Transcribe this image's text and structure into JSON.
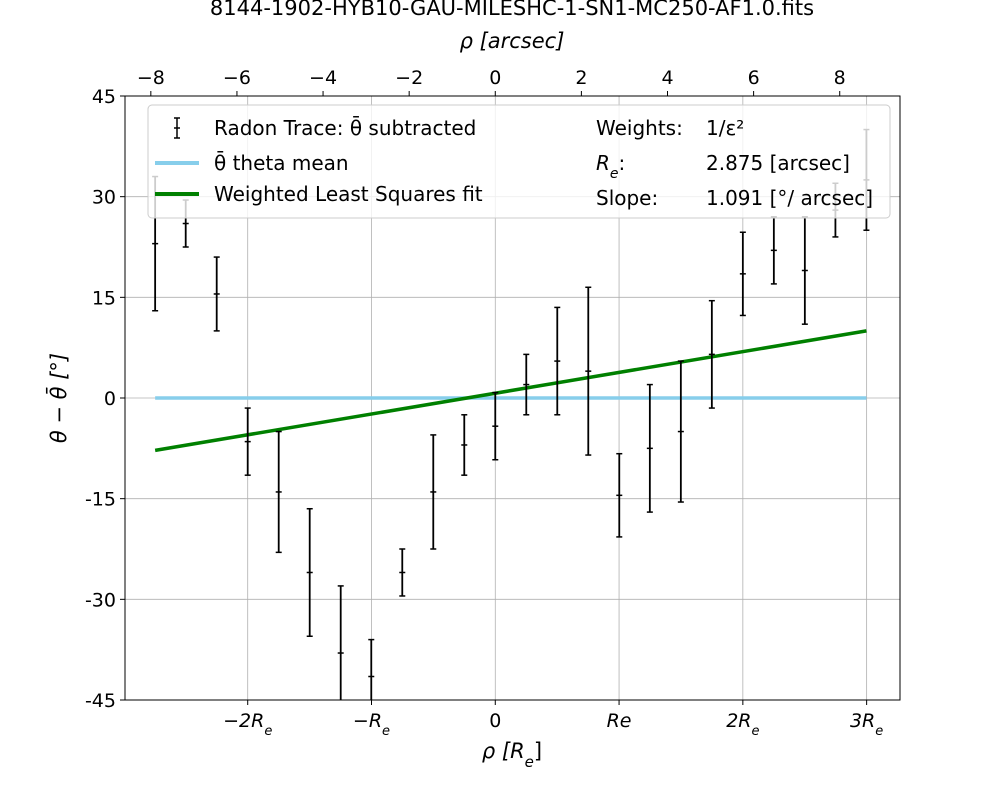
{
  "chart_data": {
    "type": "scatter",
    "title": "8144-1902-HYB10-GAU-MILESHC-1-SN1-MC250-AF1.0.fits",
    "xlabel_top": "ρ [arcsec]",
    "xlabel_bottom": "ρ [R",
    "xlabel_bottom_sub": "e",
    "xlabel_bottom_end": "]",
    "ylabel": "θ − θ̄ [°]",
    "xlim_arcsec": [
      -8.6,
      9.4
    ],
    "ylim": [
      -45,
      45
    ],
    "yticks": [
      45,
      30,
      15,
      0,
      -15,
      -30,
      -45
    ],
    "ytick_labels": [
      "45",
      "30",
      "15",
      "0",
      "-15",
      "-30",
      "-45"
    ],
    "xticks_top": [
      -8,
      -6,
      -4,
      -2,
      0,
      2,
      4,
      6,
      8
    ],
    "xtick_labels_top": [
      "−8",
      "−6",
      "−4",
      "−2",
      "0",
      "2",
      "4",
      "6",
      "8"
    ],
    "xticks_bottom_Re": [
      -2,
      -1,
      0,
      1,
      2,
      3
    ],
    "xtick_labels_bottom": [
      {
        "main": "−2R",
        "sub": "e"
      },
      {
        "main": "−R",
        "sub": "e"
      },
      {
        "main": "0",
        "sub": ""
      },
      {
        "main": "Re",
        "sub": ""
      },
      {
        "main": "2R",
        "sub": "e"
      },
      {
        "main": "3R",
        "sub": "e"
      }
    ],
    "Re_arcsec": 2.875,
    "grid": true,
    "legend_position": "top",
    "series": [
      {
        "name": "Radon Trace: θ̄ subtracted",
        "kind": "errorbar",
        "color": "#000000",
        "x": [
          -7.9,
          -7.19,
          -6.47,
          -5.75,
          -5.03,
          -4.31,
          -3.59,
          -2.88,
          -2.16,
          -1.44,
          -0.72,
          0.0,
          0.72,
          1.44,
          2.16,
          2.88,
          3.59,
          4.31,
          5.03,
          5.75,
          6.47,
          7.19,
          7.9,
          8.62
        ],
        "y": [
          23,
          26,
          15.5,
          -6.5,
          -14,
          -26,
          -38,
          -41.5,
          -26,
          -14,
          -7,
          -4.2,
          2,
          5.5,
          4,
          -14.5,
          -7.5,
          -5,
          6.5,
          18.5,
          22,
          19,
          28,
          32.5
        ],
        "err": [
          10,
          3.5,
          5.5,
          5,
          9,
          9.5,
          10,
          5.5,
          3.5,
          8.5,
          4.5,
          5,
          4.5,
          8,
          12.5,
          6.2,
          9.5,
          10.5,
          8,
          6.2,
          5,
          8,
          4,
          7.5
        ]
      },
      {
        "name": "θ̄ theta mean",
        "kind": "line",
        "color": "#87ceeb",
        "x": [
          -7.9,
          8.62
        ],
        "y": [
          0,
          0
        ]
      },
      {
        "name": "Weighted Least Squares fit",
        "kind": "line",
        "color": "#008000",
        "x": [
          -7.9,
          8.62
        ],
        "y": [
          -7.8,
          10
        ]
      }
    ],
    "legend_info": [
      {
        "label": "Weights:",
        "value": "1/ε²"
      },
      {
        "label": "R",
        "label_sub": "e",
        "label_end": ":",
        "value": "2.875 [arcsec]"
      },
      {
        "label": "Slope:",
        "value": "1.091 [°/ arcsec]"
      }
    ]
  }
}
